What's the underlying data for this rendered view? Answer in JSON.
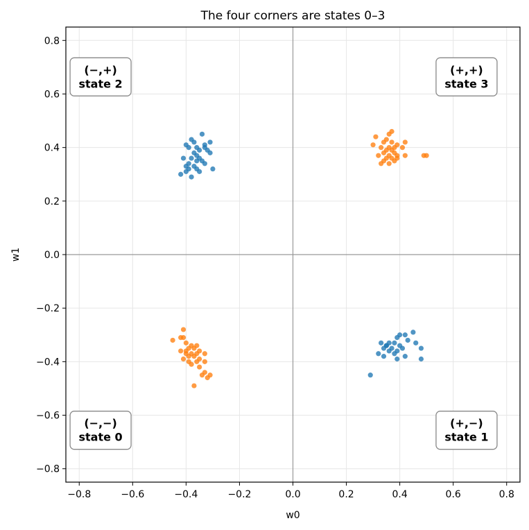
{
  "chart_data": {
    "type": "scatter",
    "title": "The four corners are states 0–3",
    "xlabel": "w0",
    "ylabel": "w1",
    "xlim": [
      -0.85,
      0.85
    ],
    "ylim": [
      -0.85,
      0.85
    ],
    "xticks": [
      -0.8,
      -0.6,
      -0.4,
      -0.2,
      0.0,
      0.2,
      0.4,
      0.6,
      0.8
    ],
    "yticks": [
      -0.8,
      -0.6,
      -0.4,
      -0.2,
      0.0,
      0.2,
      0.4,
      0.6,
      0.8
    ],
    "xtick_labels": [
      "−0.8",
      "−0.6",
      "−0.4",
      "−0.2",
      "0.0",
      "0.2",
      "0.4",
      "0.6",
      "0.8"
    ],
    "ytick_labels": [
      "−0.8",
      "−0.6",
      "−0.4",
      "−0.2",
      "0.0",
      "0.2",
      "0.4",
      "0.6",
      "0.8"
    ],
    "grid": true,
    "reference_lines": {
      "x": 0.0,
      "y": 0.0
    },
    "series": [
      {
        "color": "#1f77b4",
        "points": [
          [
            -0.38,
            0.43
          ],
          [
            -0.37,
            0.42
          ],
          [
            -0.4,
            0.41
          ],
          [
            -0.39,
            0.4
          ],
          [
            -0.36,
            0.4
          ],
          [
            -0.34,
            0.45
          ],
          [
            -0.33,
            0.41
          ],
          [
            -0.31,
            0.42
          ],
          [
            -0.32,
            0.39
          ],
          [
            -0.31,
            0.38
          ],
          [
            -0.35,
            0.39
          ],
          [
            -0.37,
            0.38
          ],
          [
            -0.36,
            0.37
          ],
          [
            -0.38,
            0.36
          ],
          [
            -0.35,
            0.36
          ],
          [
            -0.34,
            0.35
          ],
          [
            -0.36,
            0.35
          ],
          [
            -0.33,
            0.34
          ],
          [
            -0.39,
            0.34
          ],
          [
            -0.4,
            0.33
          ],
          [
            -0.37,
            0.33
          ],
          [
            -0.36,
            0.32
          ],
          [
            -0.35,
            0.31
          ],
          [
            -0.41,
            0.36
          ],
          [
            -0.3,
            0.32
          ],
          [
            -0.4,
            0.31
          ],
          [
            -0.42,
            0.3
          ],
          [
            -0.38,
            0.29
          ],
          [
            -0.39,
            0.32
          ],
          [
            -0.33,
            0.4
          ],
          [
            0.4,
            -0.3
          ],
          [
            0.42,
            -0.3
          ],
          [
            0.45,
            -0.29
          ],
          [
            0.39,
            -0.31
          ],
          [
            0.43,
            -0.32
          ],
          [
            0.38,
            -0.33
          ],
          [
            0.36,
            -0.33
          ],
          [
            0.33,
            -0.33
          ],
          [
            0.46,
            -0.33
          ],
          [
            0.35,
            -0.34
          ],
          [
            0.34,
            -0.35
          ],
          [
            0.37,
            -0.35
          ],
          [
            0.41,
            -0.35
          ],
          [
            0.48,
            -0.35
          ],
          [
            0.39,
            -0.36
          ],
          [
            0.36,
            -0.36
          ],
          [
            0.32,
            -0.37
          ],
          [
            0.38,
            -0.37
          ],
          [
            0.42,
            -0.38
          ],
          [
            0.34,
            -0.38
          ],
          [
            0.39,
            -0.39
          ],
          [
            0.48,
            -0.39
          ],
          [
            0.29,
            -0.45
          ],
          [
            0.35,
            -0.34
          ],
          [
            0.4,
            -0.34
          ]
        ]
      },
      {
        "color": "#ff7f0e",
        "points": [
          [
            0.37,
            0.46
          ],
          [
            0.36,
            0.45
          ],
          [
            0.35,
            0.43
          ],
          [
            0.31,
            0.44
          ],
          [
            0.34,
            0.42
          ],
          [
            0.37,
            0.42
          ],
          [
            0.3,
            0.41
          ],
          [
            0.39,
            0.41
          ],
          [
            0.42,
            0.42
          ],
          [
            0.33,
            0.4
          ],
          [
            0.36,
            0.4
          ],
          [
            0.38,
            0.4
          ],
          [
            0.41,
            0.4
          ],
          [
            0.35,
            0.39
          ],
          [
            0.37,
            0.39
          ],
          [
            0.34,
            0.38
          ],
          [
            0.38,
            0.38
          ],
          [
            0.36,
            0.37
          ],
          [
            0.32,
            0.37
          ],
          [
            0.39,
            0.37
          ],
          [
            0.42,
            0.37
          ],
          [
            0.49,
            0.37
          ],
          [
            0.5,
            0.37
          ],
          [
            0.35,
            0.36
          ],
          [
            0.37,
            0.36
          ],
          [
            0.34,
            0.35
          ],
          [
            0.38,
            0.35
          ],
          [
            0.33,
            0.34
          ],
          [
            0.36,
            0.34
          ],
          [
            0.39,
            0.36
          ],
          [
            -0.41,
            -0.28
          ],
          [
            -0.41,
            -0.31
          ],
          [
            -0.42,
            -0.31
          ],
          [
            -0.45,
            -0.32
          ],
          [
            -0.4,
            -0.33
          ],
          [
            -0.38,
            -0.34
          ],
          [
            -0.36,
            -0.34
          ],
          [
            -0.37,
            -0.35
          ],
          [
            -0.39,
            -0.35
          ],
          [
            -0.42,
            -0.36
          ],
          [
            -0.35,
            -0.36
          ],
          [
            -0.4,
            -0.36
          ],
          [
            -0.38,
            -0.37
          ],
          [
            -0.36,
            -0.37
          ],
          [
            -0.33,
            -0.37
          ],
          [
            -0.39,
            -0.38
          ],
          [
            -0.37,
            -0.38
          ],
          [
            -0.41,
            -0.39
          ],
          [
            -0.35,
            -0.39
          ],
          [
            -0.39,
            -0.4
          ],
          [
            -0.36,
            -0.4
          ],
          [
            -0.33,
            -0.4
          ],
          [
            -0.38,
            -0.41
          ],
          [
            -0.35,
            -0.42
          ],
          [
            -0.33,
            -0.44
          ],
          [
            -0.34,
            -0.45
          ],
          [
            -0.31,
            -0.45
          ],
          [
            -0.32,
            -0.46
          ],
          [
            -0.37,
            -0.49
          ],
          [
            -0.4,
            -0.37
          ]
        ]
      }
    ],
    "annotations": [
      {
        "line1": "(−,+)",
        "line2": "state 2",
        "x": -0.72,
        "y": 0.66
      },
      {
        "line1": "(+,+)",
        "line2": "state 3",
        "x": 0.65,
        "y": 0.66
      },
      {
        "line1": "(−,−)",
        "line2": "state 0",
        "x": -0.72,
        "y": -0.66
      },
      {
        "line1": "(+,−)",
        "line2": "state 1",
        "x": 0.65,
        "y": -0.66
      }
    ]
  }
}
